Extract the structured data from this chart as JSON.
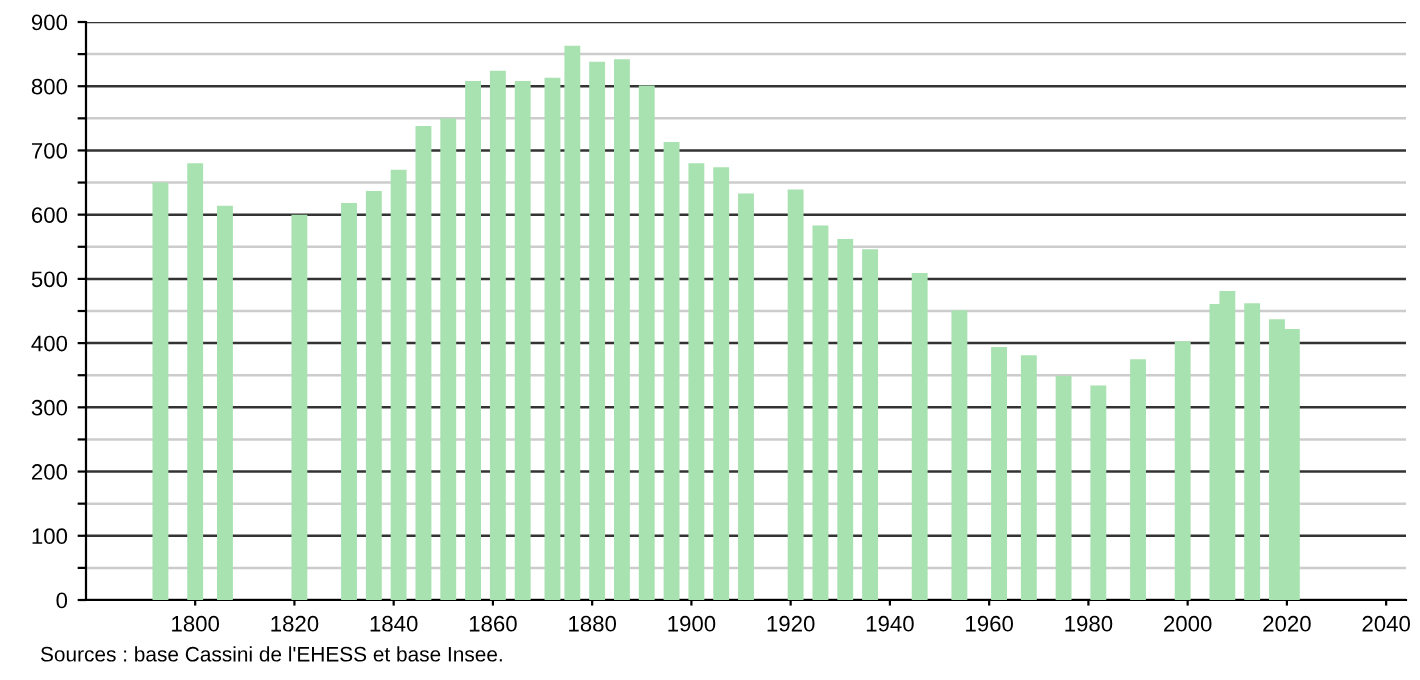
{
  "chart_data": {
    "type": "bar",
    "x": [
      1793,
      1800,
      1806,
      1821,
      1831,
      1836,
      1841,
      1846,
      1851,
      1856,
      1861,
      1866,
      1872,
      1876,
      1881,
      1886,
      1891,
      1896,
      1901,
      1906,
      1911,
      1921,
      1926,
      1931,
      1936,
      1946,
      1954,
      1962,
      1968,
      1975,
      1982,
      1990,
      1999,
      2006,
      2008,
      2013,
      2018,
      2021
    ],
    "values": [
      650,
      680,
      614,
      600,
      618,
      637,
      670,
      738,
      750,
      808,
      824,
      808,
      813,
      863,
      838,
      842,
      801,
      713,
      680,
      674,
      633,
      639,
      583,
      562,
      546,
      509,
      451,
      394,
      381,
      349,
      334,
      375,
      403,
      461,
      481,
      462,
      437,
      422
    ],
    "color": "#a8e2b0",
    "xlim": [
      1778,
      2044
    ],
    "xticks": [
      1800,
      1820,
      1840,
      1860,
      1880,
      1900,
      1920,
      1940,
      1960,
      1980,
      2000,
      2020,
      2040
    ],
    "ylim": [
      0,
      900
    ],
    "yticks": [
      0,
      {
        "value": 50,
        "label": null
      },
      100,
      {
        "value": 150,
        "label": null
      },
      200,
      {
        "value": 250,
        "label": null
      },
      300,
      {
        "value": 350,
        "label": null
      },
      400,
      {
        "value": 450,
        "label": null
      },
      500,
      {
        "value": 550,
        "label": null
      },
      600,
      {
        "value": 650,
        "label": null
      },
      700,
      {
        "value": 750,
        "label": null
      },
      800,
      {
        "value": 850,
        "label": null
      },
      900
    ],
    "grid": "y",
    "annotations": [
      "Sources : base Cassini de l'EHESS et base Insee."
    ]
  }
}
